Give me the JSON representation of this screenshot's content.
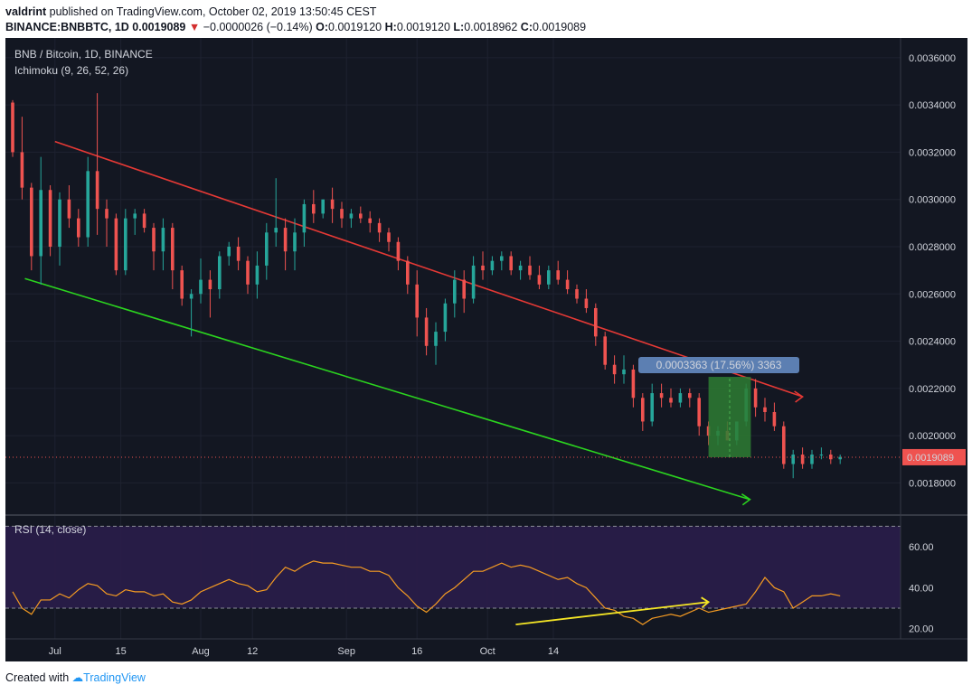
{
  "header": {
    "user": "valdrint",
    "published_text": "published on TradingView.com, October 02, 2019 13:50:45 CEST",
    "symbol": "BINANCE:BNBBTC, 1D",
    "last": "0.0019089",
    "change": "−0.0000026 (−0.14%)",
    "o_label": "O:",
    "o_value": "0.0019120",
    "h_label": "H:",
    "h_value": "0.0019120",
    "l_label": "L:",
    "l_value": "0.0018962",
    "c_label": "C:",
    "c_value": "0.0019089"
  },
  "legend": {
    "pair": "BNB / Bitcoin, 1D, BINANCE",
    "indicator": "Ichimoku (9, 26, 52, 26)",
    "rsi": "RSI (14, close)"
  },
  "footer": {
    "created_with": "Created with",
    "brand": "TradingView"
  },
  "colors": {
    "background": "#131722",
    "up": "#26a69a",
    "down": "#ef5350",
    "resistance": "#e53935",
    "support": "#2bd41f",
    "rsi_line": "#f59b22",
    "rsi_band": "#2a1d4a",
    "rsi_divergence": "#f5e625",
    "measure_box": "#2e7d32",
    "measure_label": "#5c7fb2",
    "price_label": "#ef5350"
  },
  "chart_data": [
    {
      "type": "candlestick",
      "title": "BNB / Bitcoin, 1D, BINANCE",
      "ylim": [
        0.0016677,
        0.0036836
      ],
      "xlim": [
        0,
        227
      ],
      "y_ticks": [
        "0.0036000",
        "0.0034000",
        "0.0032000",
        "0.0030000",
        "0.0028000",
        "0.0026000",
        "0.0024000",
        "0.0022000",
        "0.0020000",
        "0.0018000"
      ],
      "y_tick_values": [
        0.0036,
        0.0034,
        0.0032,
        0.003,
        0.0028,
        0.0026,
        0.0024,
        0.0022,
        0.002,
        0.0018
      ],
      "x_ticks": [
        {
          "label": "Jul",
          "day": 9
        },
        {
          "label": "15",
          "day": 23
        },
        {
          "label": "Aug",
          "day": 40
        },
        {
          "label": "12",
          "day": 51
        },
        {
          "label": "Sep",
          "day": 71
        },
        {
          "label": "16",
          "day": 86
        },
        {
          "label": "Oct",
          "day": 101
        },
        {
          "label": "14",
          "day": 115
        }
      ],
      "last_price_label": "0.0019089",
      "last_price": 0.0019089,
      "candles": [
        [
          0,
          0.00341,
          0.00342,
          0.00318,
          0.0032
        ],
        [
          1,
          0.0032,
          0.00335,
          0.003,
          0.00305
        ],
        [
          2,
          0.00305,
          0.00307,
          0.0027,
          0.00276
        ],
        [
          3,
          0.00276,
          0.00318,
          0.00264,
          0.00304
        ],
        [
          4,
          0.00304,
          0.00306,
          0.00276,
          0.0028
        ],
        [
          5,
          0.0028,
          0.00303,
          0.00272,
          0.003
        ],
        [
          6,
          0.003,
          0.00306,
          0.00288,
          0.00292
        ],
        [
          7,
          0.00292,
          0.00296,
          0.0028,
          0.00284
        ],
        [
          8,
          0.00284,
          0.00318,
          0.0028,
          0.00312
        ],
        [
          9,
          0.00312,
          0.00345,
          0.00285,
          0.00296
        ],
        [
          10,
          0.00296,
          0.003,
          0.0028,
          0.00292
        ],
        [
          11,
          0.00292,
          0.00294,
          0.00268,
          0.0027
        ],
        [
          12,
          0.0027,
          0.00296,
          0.00268,
          0.00292
        ],
        [
          13,
          0.00292,
          0.00296,
          0.00285,
          0.00294
        ],
        [
          14,
          0.00294,
          0.00296,
          0.00286,
          0.00288
        ],
        [
          15,
          0.00288,
          0.0029,
          0.0027,
          0.00278
        ],
        [
          16,
          0.00278,
          0.00292,
          0.0027,
          0.00288
        ],
        [
          17,
          0.00288,
          0.0029,
          0.00262,
          0.0027
        ],
        [
          18,
          0.0027,
          0.00272,
          0.00255,
          0.00258
        ],
        [
          19,
          0.00258,
          0.00262,
          0.00242,
          0.0026
        ],
        [
          20,
          0.0026,
          0.00275,
          0.00256,
          0.00266
        ],
        [
          21,
          0.00266,
          0.0027,
          0.0025,
          0.00262
        ],
        [
          22,
          0.00262,
          0.00278,
          0.00258,
          0.00276
        ],
        [
          23,
          0.00276,
          0.00282,
          0.00272,
          0.0028
        ],
        [
          24,
          0.0028,
          0.00284,
          0.0027,
          0.00274
        ],
        [
          25,
          0.00274,
          0.00276,
          0.0026,
          0.00264
        ],
        [
          26,
          0.00264,
          0.00278,
          0.00258,
          0.00272
        ],
        [
          27,
          0.00272,
          0.0029,
          0.00266,
          0.00286
        ],
        [
          28,
          0.00286,
          0.00309,
          0.0028,
          0.00288
        ],
        [
          29,
          0.00288,
          0.00292,
          0.0027,
          0.00278
        ],
        [
          30,
          0.00278,
          0.00292,
          0.0027,
          0.00286
        ],
        [
          31,
          0.00286,
          0.003,
          0.0028,
          0.00298
        ],
        [
          32,
          0.00298,
          0.00304,
          0.0029,
          0.00294
        ],
        [
          33,
          0.00294,
          0.003,
          0.00292,
          0.003
        ],
        [
          34,
          0.003,
          0.00305,
          0.0029,
          0.00296
        ],
        [
          35,
          0.00296,
          0.00299,
          0.00288,
          0.00292
        ],
        [
          36,
          0.00292,
          0.00296,
          0.00288,
          0.00294
        ],
        [
          37,
          0.00294,
          0.00297,
          0.0029,
          0.00292
        ],
        [
          38,
          0.00292,
          0.00295,
          0.00286,
          0.0029
        ],
        [
          39,
          0.0029,
          0.00292,
          0.00282,
          0.00286
        ],
        [
          40,
          0.00286,
          0.00288,
          0.00278,
          0.00282
        ],
        [
          41,
          0.00282,
          0.00284,
          0.0027,
          0.00274
        ],
        [
          42,
          0.00274,
          0.00276,
          0.0026,
          0.00264
        ],
        [
          43,
          0.00264,
          0.0027,
          0.00242,
          0.0025
        ],
        [
          44,
          0.0025,
          0.00254,
          0.00234,
          0.00238
        ],
        [
          45,
          0.00238,
          0.00248,
          0.0023,
          0.00244
        ],
        [
          46,
          0.00244,
          0.00258,
          0.0024,
          0.00256
        ],
        [
          47,
          0.00256,
          0.0027,
          0.0025,
          0.00266
        ],
        [
          48,
          0.00266,
          0.0027,
          0.00252,
          0.00258
        ],
        [
          49,
          0.00258,
          0.00276,
          0.00256,
          0.00272
        ],
        [
          50,
          0.00272,
          0.00278,
          0.00266,
          0.0027
        ],
        [
          51,
          0.0027,
          0.00276,
          0.00268,
          0.00274
        ],
        [
          52,
          0.00274,
          0.00278,
          0.0027,
          0.00276
        ],
        [
          53,
          0.00276,
          0.00278,
          0.00268,
          0.0027
        ],
        [
          54,
          0.0027,
          0.00274,
          0.00266,
          0.00272
        ],
        [
          55,
          0.00272,
          0.00276,
          0.00266,
          0.00268
        ],
        [
          56,
          0.00268,
          0.00272,
          0.00262,
          0.00264
        ],
        [
          57,
          0.00264,
          0.00272,
          0.00262,
          0.0027
        ],
        [
          58,
          0.0027,
          0.00274,
          0.00264,
          0.00266
        ],
        [
          59,
          0.00266,
          0.0027,
          0.0026,
          0.00262
        ],
        [
          60,
          0.00262,
          0.00264,
          0.00256,
          0.00258
        ],
        [
          61,
          0.00258,
          0.00262,
          0.00252,
          0.00254
        ],
        [
          62,
          0.00254,
          0.00256,
          0.00238,
          0.00242
        ],
        [
          63,
          0.00242,
          0.00244,
          0.00228,
          0.0023
        ],
        [
          64,
          0.0023,
          0.00234,
          0.00222,
          0.00226
        ],
        [
          65,
          0.00226,
          0.00234,
          0.00222,
          0.00228
        ],
        [
          66,
          0.00228,
          0.0023,
          0.00212,
          0.00216
        ],
        [
          67,
          0.00216,
          0.00218,
          0.00202,
          0.00206
        ],
        [
          68,
          0.00206,
          0.00222,
          0.00204,
          0.00218
        ],
        [
          69,
          0.00218,
          0.00222,
          0.00212,
          0.00216
        ],
        [
          70,
          0.00216,
          0.0022,
          0.00212,
          0.00214
        ],
        [
          71,
          0.00214,
          0.0022,
          0.00212,
          0.00218
        ],
        [
          72,
          0.00218,
          0.0022,
          0.00212,
          0.00216
        ],
        [
          73,
          0.00216,
          0.00218,
          0.002,
          0.00204
        ],
        [
          74,
          0.00204,
          0.00206,
          0.00196,
          0.002
        ],
        [
          75,
          0.002,
          0.00204,
          0.00196,
          0.00202
        ],
        [
          76,
          0.00202,
          0.00206,
          0.00198,
          0.00198
        ],
        [
          77,
          0.00198,
          0.00206,
          0.00196,
          0.00206
        ],
        [
          78,
          0.00206,
          0.00222,
          0.00204,
          0.0022
        ],
        [
          79,
          0.0022,
          0.00224,
          0.00208,
          0.00212
        ],
        [
          80,
          0.00212,
          0.00216,
          0.00206,
          0.0021
        ],
        [
          81,
          0.0021,
          0.00214,
          0.00202,
          0.00204
        ],
        [
          82,
          0.00204,
          0.00206,
          0.00186,
          0.00188
        ],
        [
          83,
          0.00188,
          0.00194,
          0.00182,
          0.00192
        ],
        [
          84,
          0.00192,
          0.00195,
          0.00186,
          0.00188
        ],
        [
          85,
          0.00188,
          0.00194,
          0.00186,
          0.00192
        ],
        [
          86,
          0.00192,
          0.00195,
          0.0019,
          0.00192
        ],
        [
          87,
          0.00192,
          0.00194,
          0.00188,
          0.0019
        ],
        [
          88,
          0.0019,
          0.00192,
          0.00188,
          0.00191
        ]
      ]
    },
    {
      "type": "line",
      "title": "RSI (14, close)",
      "ylim": [
        15,
        75
      ],
      "y_ticks": [
        "60.00",
        "40.00",
        "20.00"
      ],
      "y_tick_values": [
        60,
        40,
        20
      ],
      "bands": [
        30,
        70
      ],
      "values": [
        38,
        30,
        27,
        34,
        34,
        37,
        35,
        39,
        42,
        41,
        37,
        36,
        39,
        38,
        38,
        36,
        37,
        33,
        32,
        34,
        38,
        40,
        42,
        44,
        42,
        41,
        38,
        39,
        45,
        50,
        48,
        51,
        53,
        52,
        52,
        51,
        50,
        50,
        48,
        48,
        46,
        40,
        36,
        31,
        28,
        32,
        37,
        40,
        44,
        48,
        48,
        50,
        52,
        50,
        51,
        50,
        48,
        46,
        44,
        45,
        42,
        40,
        35,
        30,
        29,
        26,
        25,
        22,
        25,
        26,
        27,
        26,
        28,
        30,
        28,
        29,
        30,
        31,
        32,
        38,
        45,
        40,
        38,
        30,
        33,
        36,
        36,
        37,
        36
      ]
    }
  ],
  "annotations": {
    "measure_label": "0.0003363 (17.56%) 3363"
  }
}
